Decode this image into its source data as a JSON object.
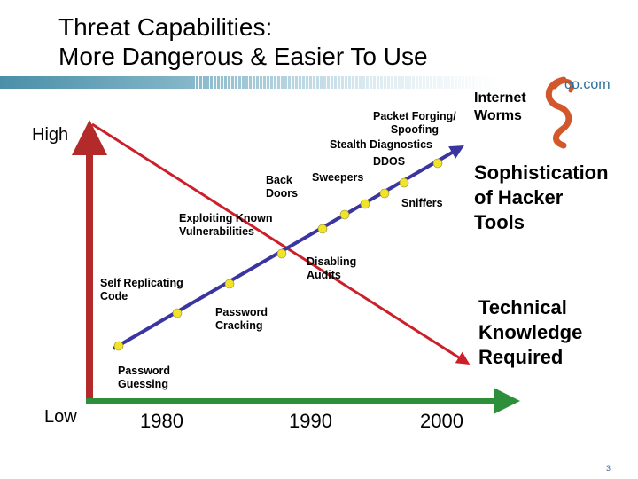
{
  "title": {
    "line1": "Threat Capabilities:",
    "line2": "More Dangerous & Easier To Use"
  },
  "logo": {
    "text": "co.com",
    "icon": "swirl-logo-icon",
    "color": "#d2572a"
  },
  "axis": {
    "high_label": "High",
    "low_label": "Low",
    "years": [
      "1980",
      "1990",
      "2000"
    ]
  },
  "tool_labels": {
    "password_guessing": "Password\nGuessing",
    "self_replicating_code": "Self Replicating\nCode",
    "password_cracking": "Password\nCracking",
    "exploiting_known_vulnerabilities": "Exploiting Known\nVulnerabilities",
    "disabling_audits": "Disabling\nAudits",
    "back_doors": "Back\nDoors",
    "sweepers": "Sweepers",
    "sniffers": "Sniffers",
    "packet_forging_spoofing": "Packet Forging/\nSpoofing",
    "stealth_diagnostics": "Stealth Diagnostics",
    "ddos": "DDOS",
    "internet_worms": "Internet\nWorms"
  },
  "series": {
    "sophistication": "Sophistication\nof Hacker\nTools",
    "knowledge": "Technical\nKnowledge\nRequired"
  },
  "colors": {
    "sophistication_line": "#3a35a0",
    "knowledge_line": "#cc1f2a",
    "marker": "#f2e22a",
    "vertical_axis": "#b22a2a",
    "horizontal_axis": "#2e8f3a",
    "title_bar": "#4a8fa8"
  },
  "page_number": "3"
}
